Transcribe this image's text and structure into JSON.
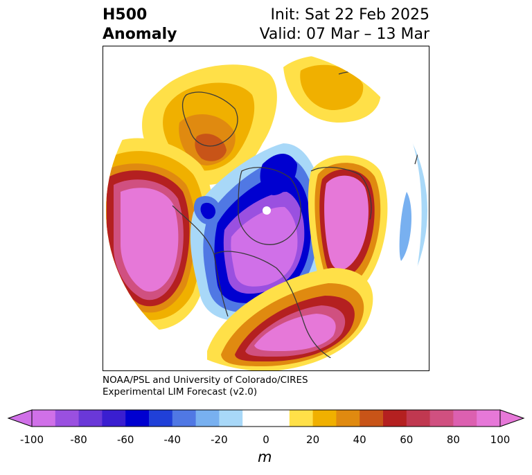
{
  "header": {
    "title_line1": "H500",
    "title_line2": "Anomaly",
    "init": "Init: Sat 22 Feb 2025",
    "valid": "Valid: 07 Mar – 13 Mar"
  },
  "credit": {
    "line1": "NOAA/PSL and University of Colorado/CIRES",
    "line2": "Experimental LIM Forecast (v2.0)"
  },
  "colorbar": {
    "tick_labels": [
      "-100",
      "-80",
      "-60",
      "-40",
      "-20",
      "0",
      "20",
      "40",
      "60",
      "80",
      "100"
    ],
    "unit": "m",
    "colors": [
      "#d070e8",
      "#9a50e0",
      "#6a38d8",
      "#3a1ed0",
      "#0000d0",
      "#2040d8",
      "#5078e4",
      "#78b0f0",
      "#a8d8f8",
      "#ffffff",
      "#ffffff",
      "#ffe048",
      "#f0b000",
      "#e08a10",
      "#c85418",
      "#b42020",
      "#c03850",
      "#d05080",
      "#dc60b0",
      "#e678d8"
    ],
    "extend_low_color": "#d070e8",
    "extend_high_color": "#e678d8"
  },
  "map": {
    "projection": "north-polar-stereographic",
    "field": "500 hPa geopotential height anomaly",
    "features": [
      "positive-anomaly-north-pacific",
      "negative-anomaly-canada",
      "positive-anomaly-eastern-us",
      "positive-anomaly-north-atlantic",
      "positive-anomaly-siberia"
    ]
  }
}
